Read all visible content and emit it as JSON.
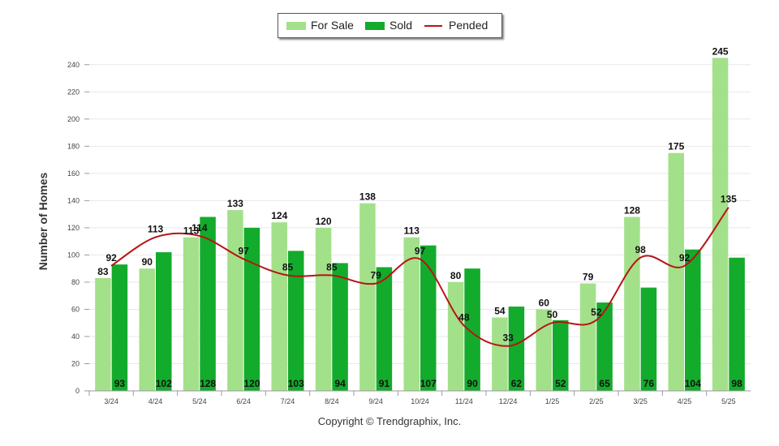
{
  "chart_data": {
    "type": "bar",
    "categories": [
      "3/24",
      "4/24",
      "5/24",
      "6/24",
      "7/24",
      "8/24",
      "9/24",
      "10/24",
      "11/24",
      "12/24",
      "1/25",
      "2/25",
      "3/25",
      "4/25",
      "5/25"
    ],
    "series": [
      {
        "name": "For Sale",
        "type": "bar",
        "color": "#a3e08a",
        "values": [
          83,
          90,
          113,
          133,
          124,
          120,
          138,
          113,
          80,
          54,
          60,
          79,
          128,
          175,
          245
        ]
      },
      {
        "name": "Sold",
        "type": "bar",
        "color": "#13ab2b",
        "values": [
          93,
          102,
          128,
          120,
          103,
          94,
          91,
          107,
          90,
          62,
          52,
          65,
          76,
          104,
          98
        ]
      },
      {
        "name": "Pended",
        "type": "line",
        "color": "#b81414",
        "values": [
          92,
          113,
          114,
          97,
          85,
          85,
          79,
          97,
          48,
          33,
          50,
          52,
          98,
          92,
          135
        ]
      }
    ],
    "ylabel": "Number of Homes",
    "ylim": [
      0,
      250
    ],
    "yticks": [
      0,
      20,
      40,
      60,
      80,
      100,
      120,
      140,
      160,
      180,
      200,
      220,
      240
    ],
    "grid": true,
    "legend": "top-center"
  },
  "footer": {
    "copyright": "Copyright © Trendgraphix, Inc."
  }
}
